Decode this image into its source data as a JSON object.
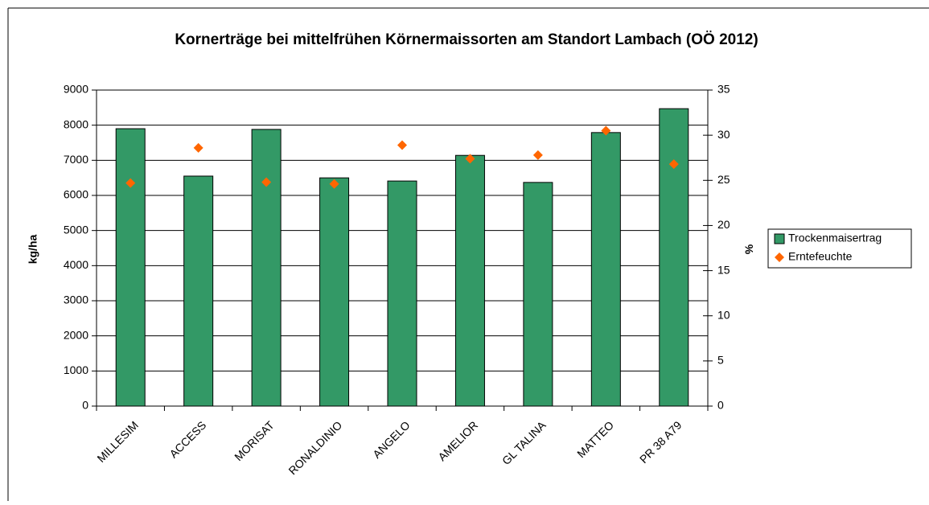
{
  "chart_data": {
    "type": "bar",
    "title": "Kornerträge bei mittelfrühen Körnermaissorten am Standort Lambach (OÖ 2012)",
    "ylabel": "kg/ha",
    "y2label": "%",
    "categories": [
      "MILLESIM",
      "ACCESS",
      "MORISAT",
      "RONALDINIO",
      "ANGELO",
      "AMELIOR",
      "GL TALINA",
      "MATTEO",
      "PR 38 A79"
    ],
    "series": [
      {
        "name": "Trockenmaisertrag",
        "type": "bar",
        "color": "#339966",
        "values": [
          7900,
          6550,
          7880,
          6500,
          6410,
          7140,
          6370,
          7790,
          8470
        ]
      },
      {
        "name": "Erntefeuchte",
        "type": "scatter",
        "axis": "y2",
        "color": "#ff6600",
        "values": [
          24.7,
          28.6,
          24.8,
          24.6,
          28.9,
          27.4,
          27.8,
          30.5,
          26.8
        ]
      }
    ],
    "ylim": [
      0,
      9000
    ],
    "yticks": [
      0,
      1000,
      2000,
      3000,
      4000,
      5000,
      6000,
      7000,
      8000,
      9000
    ],
    "y2lim": [
      0,
      35
    ],
    "y2ticks": [
      0,
      5,
      10,
      15,
      20,
      25,
      30,
      35
    ],
    "grid": true,
    "legend": "right"
  }
}
